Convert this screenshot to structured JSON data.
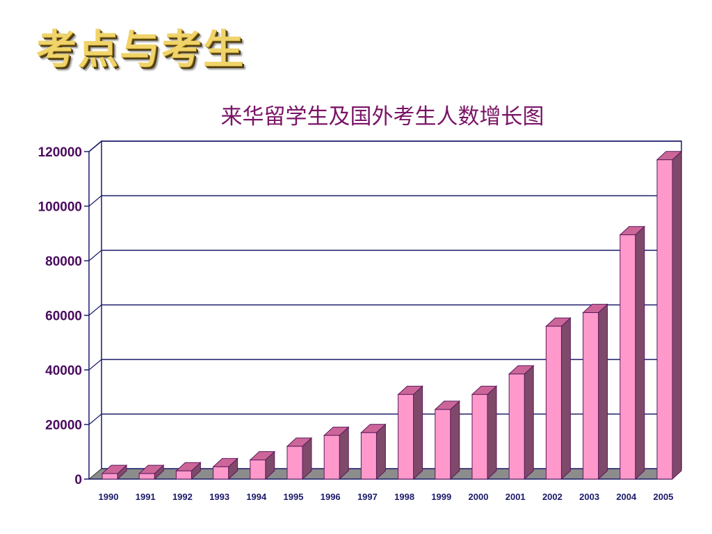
{
  "page": {
    "heading": "考点与考生"
  },
  "chart_data": {
    "type": "bar",
    "title": "来华留学生及国外考生人数增长图",
    "xlabel": "",
    "ylabel": "",
    "categories": [
      "1990",
      "1991",
      "1992",
      "1993",
      "1994",
      "1995",
      "1996",
      "1997",
      "1998",
      "1999",
      "2000",
      "2001",
      "2002",
      "2003",
      "2004",
      "2005"
    ],
    "values": [
      2000,
      2000,
      3000,
      4500,
      7000,
      12000,
      16000,
      17000,
      31000,
      25500,
      31000,
      38500,
      56000,
      61000,
      89500,
      117000
    ],
    "ylim": [
      0,
      120000
    ],
    "yticks": [
      0,
      20000,
      40000,
      60000,
      80000,
      100000,
      120000
    ],
    "grid": true,
    "legend": "none",
    "style": "3d",
    "colors": {
      "bar_front": "#ff99cc",
      "bar_top": "#cc6699",
      "bar_side": "#7f4a6a",
      "bar_stroke": "#5a1a5a",
      "floor": "#8c8c8c",
      "axis": "#1a1a6a",
      "grid": "#1a1a6a",
      "title": "#7a1466"
    }
  }
}
